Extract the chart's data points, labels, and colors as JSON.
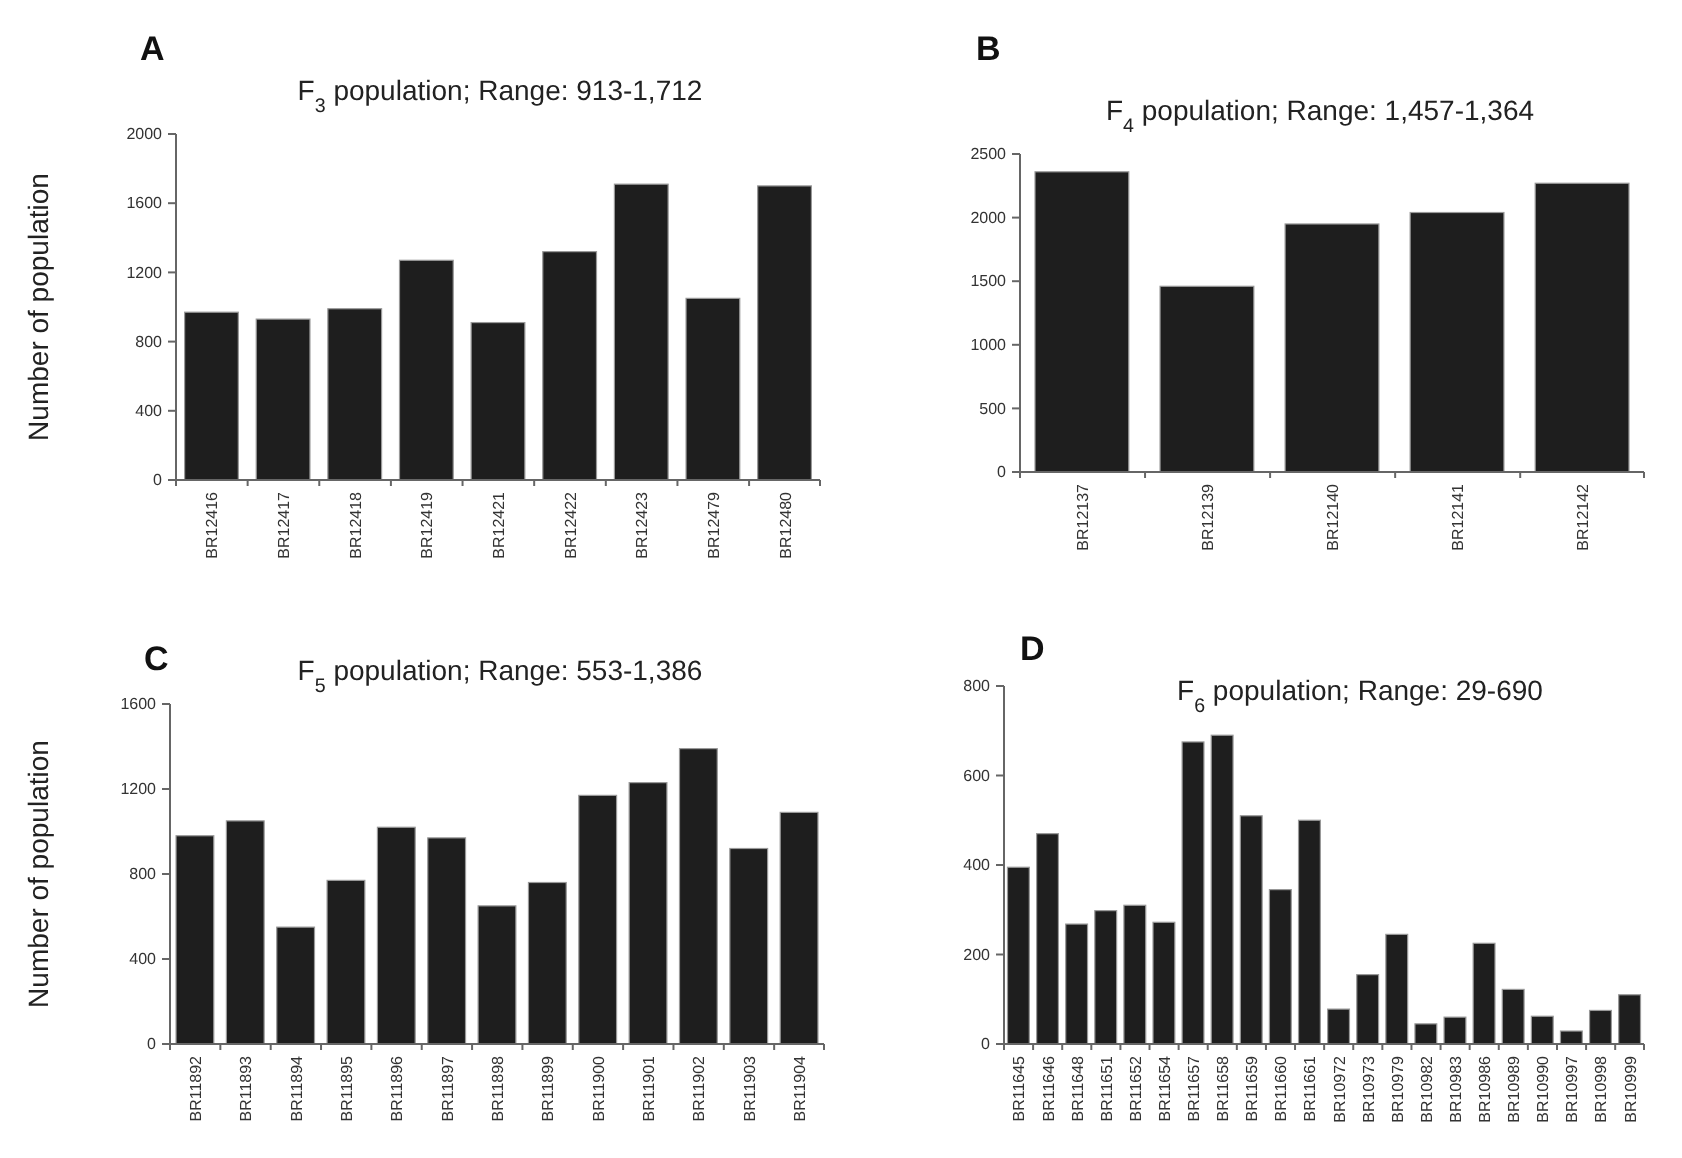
{
  "chart_data": [
    {
      "type": "bar",
      "title": "F$_{3}$ population; Range: 913-1,712",
      "ylabel": "Number of population",
      "annotations": [
        "A"
      ],
      "categories": [
        "BR12416",
        "BR12417",
        "BR12418",
        "BR12419",
        "BR12421",
        "BR12422",
        "BR12423",
        "BR12479",
        "BR12480"
      ],
      "values": [
        970,
        930,
        990,
        1270,
        910,
        1320,
        1710,
        1050,
        1700
      ],
      "color": "#1e1e1e",
      "ylim": [
        0,
        2000
      ],
      "yticks": [
        0,
        400,
        800,
        1200,
        1600,
        2000
      ],
      "grid": false
    },
    {
      "type": "bar",
      "title": "F$_{4}$ population; Range: 1,457-1,364",
      "annotations": [
        "B"
      ],
      "categories": [
        "BR12137",
        "BR12139",
        "BR12140",
        "BR12141",
        "BR12142"
      ],
      "values": [
        2360,
        1460,
        1950,
        2040,
        2270
      ],
      "color": "#1e1e1e",
      "ylim": [
        0,
        2500
      ],
      "yticks": [
        0,
        500,
        1000,
        1500,
        2000,
        2500
      ],
      "grid": false
    },
    {
      "type": "bar",
      "title": "F$_{5}$ population; Range: 553-1,386",
      "ylabel": "Number of population",
      "annotations": [
        "C"
      ],
      "categories": [
        "BR11892",
        "BR11893",
        "BR11894",
        "BR11895",
        "BR11896",
        "BR11897",
        "BR11898",
        "BR11899",
        "BR11900",
        "BR11901",
        "BR11902",
        "BR11903",
        "BR11904"
      ],
      "values": [
        980,
        1050,
        550,
        770,
        1020,
        970,
        650,
        760,
        1170,
        1230,
        1390,
        920,
        1090
      ],
      "color": "#1e1e1e",
      "ylim": [
        0,
        1600
      ],
      "yticks": [
        0,
        400,
        800,
        1200,
        1600
      ],
      "grid": false
    },
    {
      "type": "bar",
      "title": "F$_{6}$ population; Range: 29-690",
      "annotations": [
        "D"
      ],
      "categories": [
        "BR11645",
        "BR11646",
        "BR11648",
        "BR11651",
        "BR11652",
        "BR11654",
        "BR11657",
        "BR11658",
        "BR11659",
        "BR11660",
        "BR11661",
        "BR10972",
        "BR10973",
        "BR10979",
        "BR10982",
        "BR10983",
        "BR10986",
        "BR10989",
        "BR10990",
        "BR10997",
        "BR10998",
        "BR10999"
      ],
      "values": [
        395,
        470,
        268,
        298,
        310,
        272,
        675,
        690,
        510,
        345,
        500,
        78,
        155,
        245,
        45,
        60,
        225,
        122,
        62,
        29,
        75,
        110
      ],
      "color": "#1e1e1e",
      "ylim": [
        0,
        800
      ],
      "yticks": [
        0,
        200,
        400,
        600,
        800
      ],
      "grid": false
    }
  ]
}
